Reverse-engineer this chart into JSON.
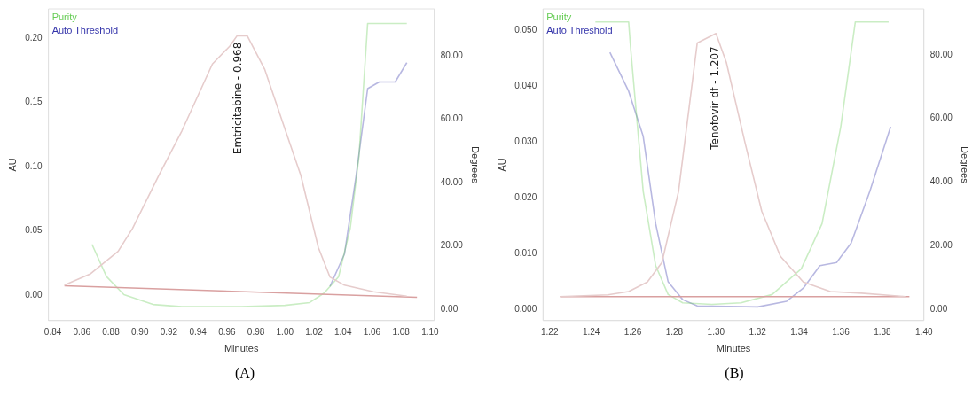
{
  "chart_data": [
    {
      "type": "line",
      "xlabel": "Minutes",
      "ylabel": "AU",
      "y2label": "Degrees",
      "legend": "top left",
      "marker": "none",
      "line_style": "solid",
      "xlim": [
        0.837,
        1.103
      ],
      "ylim": [
        -0.02,
        0.223
      ],
      "y2lim": [
        -3.6,
        94.9
      ],
      "xticks": [
        {
          "value": 0.84,
          "label": "0.84"
        },
        {
          "value": 0.86,
          "label": "0.86"
        },
        {
          "value": 0.88,
          "label": "0.88"
        },
        {
          "value": 0.9,
          "label": "0.90"
        },
        {
          "value": 0.92,
          "label": "0.92"
        },
        {
          "value": 0.94,
          "label": "0.94"
        },
        {
          "value": 0.96,
          "label": "0.96"
        },
        {
          "value": 0.98,
          "label": "0.98"
        },
        {
          "value": 1.0,
          "label": "1.00"
        },
        {
          "value": 1.02,
          "label": "1.02"
        },
        {
          "value": 1.04,
          "label": "1.04"
        },
        {
          "value": 1.06,
          "label": "1.06"
        },
        {
          "value": 1.08,
          "label": "1.08"
        },
        {
          "value": 1.1,
          "label": "1.10"
        }
      ],
      "yticks": [
        {
          "value": 0,
          "label": "0.00"
        },
        {
          "value": 0.05,
          "label": "0.05"
        },
        {
          "value": 0.1,
          "label": "0.10"
        },
        {
          "value": 0.15,
          "label": "0.15"
        },
        {
          "value": 0.2,
          "label": "0.20"
        }
      ],
      "y2ticks": [
        {
          "value": 0,
          "label": "0.00"
        },
        {
          "value": 20,
          "label": "20.00"
        },
        {
          "value": 40,
          "label": "40.00"
        },
        {
          "value": 60,
          "label": "60.00"
        },
        {
          "value": 80,
          "label": "80.00"
        }
      ],
      "series": [
        {
          "color": "#e6cccc",
          "x": [
            0.848,
            0.866,
            0.885,
            0.895,
            0.913,
            0.929,
            0.95,
            0.962,
            0.967,
            0.974,
            0.986,
            0.998,
            1.011,
            1.023,
            1.031,
            1.041,
            1.061,
            1.084
          ],
          "values": [
            0.0076,
            0.0165,
            0.034,
            0.052,
            0.093,
            0.128,
            0.18,
            0.194,
            0.202,
            0.202,
            0.176,
            0.136,
            0.093,
            0.037,
            0.014,
            0.0076,
            0.0025,
            -0.001
          ]
        },
        {
          "color": "#d9a0a0",
          "x": [
            0.848,
            1.091
          ],
          "values": [
            0.0071,
            -0.0018
          ]
        },
        {
          "name": "Purity",
          "axis": "y2",
          "color": "#66cc55",
          "x": [
            0.867,
            0.877,
            0.889,
            0.909,
            0.929,
            0.97,
            1.0,
            1.017,
            1.027,
            1.037,
            1.045,
            1.051,
            1.057,
            1.084
          ],
          "values": [
            20.5,
            10.3,
            4.6,
            1.5,
            0.8,
            0.8,
            1.2,
            2.1,
            5.1,
            10.3,
            25.6,
            48.2,
            90.3,
            90.3
          ]
        },
        {
          "name": "Auto Threshold",
          "axis": "y2",
          "color": "#3333aa",
          "x": [
            1.031,
            1.041,
            1.049,
            1.057,
            1.065,
            1.076,
            1.084
          ],
          "values": [
            7.2,
            17.4,
            42,
            69.7,
            71.8,
            71.8,
            77.9
          ]
        }
      ],
      "annotations": [
        {
          "text": "Emtricitabine - 0.968",
          "x": 0.968,
          "y": 0.197
        },
        "(A)"
      ]
    },
    {
      "type": "line",
      "xlabel": "Minutes",
      "ylabel": "AU",
      "y2label": "Degrees",
      "legend": "top left",
      "marker": "none",
      "line_style": "solid",
      "xlim": [
        1.2168,
        1.4
      ],
      "ylim": [
        -0.002,
        0.0538
      ],
      "y2lim": [
        -3.6,
        94.5
      ],
      "xticks": [
        {
          "value": 1.22,
          "label": "1.22"
        },
        {
          "value": 1.24,
          "label": "1.24"
        },
        {
          "value": 1.26,
          "label": "1.26"
        },
        {
          "value": 1.28,
          "label": "1.28"
        },
        {
          "value": 1.3,
          "label": "1.30"
        },
        {
          "value": 1.32,
          "label": "1.32"
        },
        {
          "value": 1.34,
          "label": "1.34"
        },
        {
          "value": 1.36,
          "label": "1.36"
        },
        {
          "value": 1.38,
          "label": "1.38"
        },
        {
          "value": 1.4,
          "label": "1.40"
        }
      ],
      "yticks": [
        {
          "value": 0,
          "label": "0.000"
        },
        {
          "value": 0.01,
          "label": "0.010"
        },
        {
          "value": 0.02,
          "label": "0.020"
        },
        {
          "value": 0.03,
          "label": "0.030"
        },
        {
          "value": 0.04,
          "label": "0.040"
        },
        {
          "value": 0.05,
          "label": "0.050"
        }
      ],
      "y2ticks": [
        {
          "value": 0,
          "label": "0.00"
        },
        {
          "value": 20,
          "label": "20.00"
        },
        {
          "value": 40,
          "label": "40.00"
        },
        {
          "value": 60,
          "label": "60.00"
        },
        {
          "value": 80,
          "label": "80.00"
        }
      ],
      "series": [
        {
          "color": "#e6cccc",
          "x": [
            1.225,
            1.248,
            1.258,
            1.267,
            1.274,
            1.282,
            1.291,
            1.3,
            1.305,
            1.314,
            1.322,
            1.331,
            1.342,
            1.355,
            1.37,
            1.391
          ],
          "values": [
            0.0023,
            0.0026,
            0.0032,
            0.0049,
            0.0084,
            0.0211,
            0.0477,
            0.0494,
            0.0442,
            0.0298,
            0.0176,
            0.0095,
            0.0049,
            0.0032,
            0.0029,
            0.0023
          ]
        },
        {
          "color": "#d9a0a0",
          "x": [
            1.225,
            1.393
          ],
          "values": [
            0.0023,
            0.0023
          ]
        },
        {
          "name": "Purity",
          "axis": "y2",
          "color": "#66cc55",
          "x": [
            1.242,
            1.258,
            1.259,
            1.265,
            1.271,
            1.277,
            1.284,
            1.298,
            1.312,
            1.327,
            1.341,
            1.351,
            1.36,
            1.367,
            1.383
          ],
          "values": [
            90.4,
            90.4,
            81.8,
            37.1,
            13.7,
            4.6,
            2.0,
            1.5,
            2.0,
            4.6,
            12.7,
            26.9,
            57.4,
            90.4,
            90.4
          ]
        },
        {
          "name": "Auto Threshold",
          "axis": "y2",
          "color": "#3333aa",
          "x": [
            1.249,
            1.258,
            1.265,
            1.271,
            1.277,
            1.284,
            1.291,
            1.32,
            1.334,
            1.342,
            1.35,
            1.358,
            1.365,
            1.374,
            1.384
          ],
          "values": [
            80.8,
            68.6,
            54.4,
            26.9,
            8.6,
            3.0,
            1.0,
            0.7,
            2.5,
            6.6,
            13.7,
            14.7,
            20.8,
            37.1,
            57.4
          ]
        }
      ],
      "annotations": [
        {
          "text": "Tenofovir df - 1.207",
          "x": 1.3,
          "y": 0.0471
        },
        "(B)"
      ]
    }
  ]
}
